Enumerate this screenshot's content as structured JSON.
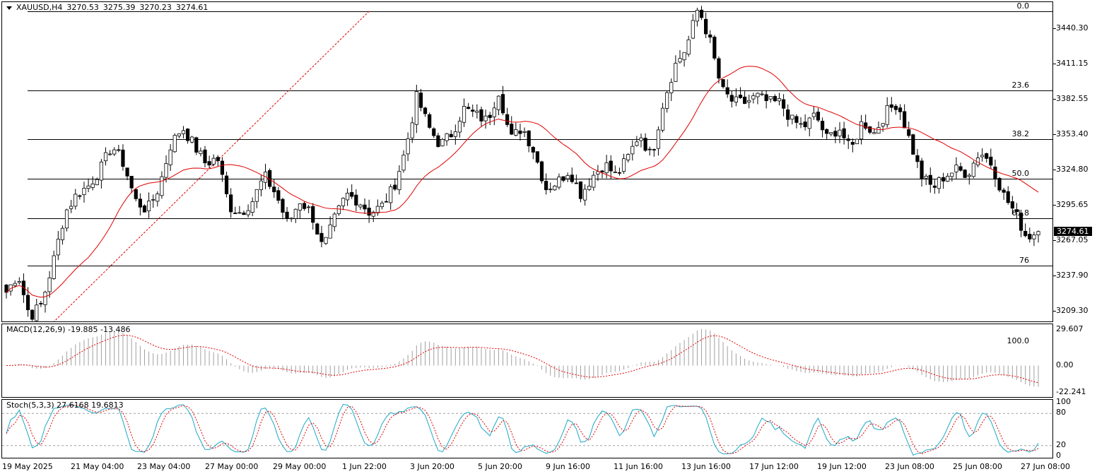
{
  "chart_data": [
    {
      "type": "candlestick",
      "symbol": "XAUUSD,H4",
      "ohlc_header": {
        "open": "3270.53",
        "high": "3275.39",
        "low": "3270.23",
        "close": "3274.61"
      },
      "current_price": "3274.61",
      "y_ticks": [
        "3440.30",
        "3411.15",
        "3382.55",
        "3353.40",
        "3324.80",
        "3295.65",
        "3267.05",
        "3237.90",
        "3209.30"
      ],
      "ylim": [
        3200,
        3462
      ],
      "fib_levels": [
        {
          "label": "0.0",
          "price": 3454.5
        },
        {
          "label": "23.6",
          "price": 3389.9
        },
        {
          "label": "38.2",
          "price": 3350.0
        },
        {
          "label": "50.0",
          "price": 3317.7
        },
        {
          "label": "61.8",
          "price": 3285.4
        },
        {
          "label": "76",
          "price": 3246.6
        },
        {
          "label": "100.0",
          "price": 3180.9
        }
      ],
      "x_labels": [
        "19 May 2025",
        "21 May 04:00",
        "23 May 04:00",
        "27 May 00:00",
        "29 May 00:00",
        "1 Jun 22:00",
        "3 Jun 20:00",
        "5 Jun 20:00",
        "9 Jun 16:00",
        "11 Jun 16:00",
        "13 Jun 16:00",
        "17 Jun 12:00",
        "19 Jun 12:00",
        "23 Jun 08:00",
        "25 Jun 08:00",
        "27 Jun 08:00"
      ],
      "close_path": [
        3225,
        3240,
        3205,
        3215,
        3250,
        3290,
        3305,
        3312,
        3325,
        3345,
        3330,
        3300,
        3292,
        3310,
        3345,
        3360,
        3345,
        3330,
        3335,
        3295,
        3290,
        3300,
        3320,
        3305,
        3280,
        3300,
        3290,
        3260,
        3285,
        3305,
        3300,
        3290,
        3295,
        3310,
        3340,
        3385,
        3360,
        3345,
        3355,
        3375,
        3370,
        3365,
        3390,
        3350,
        3360,
        3340,
        3310,
        3315,
        3325,
        3305,
        3320,
        3330,
        3320,
        3335,
        3355,
        3335,
        3380,
        3410,
        3425,
        3458,
        3430,
        3390,
        3380,
        3380,
        3385,
        3380,
        3380,
        3365,
        3360,
        3370,
        3350,
        3360,
        3340,
        3365,
        3355,
        3372,
        3380,
        3350,
        3320,
        3310,
        3320,
        3325,
        3322,
        3340,
        3330,
        3305,
        3290,
        3270,
        3274.61
      ],
      "ma_color": "#e00000",
      "candle_colors": {
        "up": "#ffffff",
        "down": "#000000",
        "wick": "#000000"
      }
    },
    {
      "type": "macd",
      "label": "MACD(12,26,9) -19.885 -13.486",
      "y_ticks": [
        "29.607",
        "0.00",
        "-22.241"
      ],
      "ylim": [
        -27,
        34
      ],
      "hist_color": "#a0a0a0",
      "signal_color": "#e00000"
    },
    {
      "type": "stochastic",
      "label": "Stoch(5,3,3) 27.6168 19.6813",
      "y_ticks": [
        "100",
        "80",
        "20",
        "0"
      ],
      "ylim": [
        0,
        100
      ],
      "levels": [
        80,
        20
      ],
      "main_color": "#1ca8c8",
      "signal_color": "#e00000"
    }
  ]
}
